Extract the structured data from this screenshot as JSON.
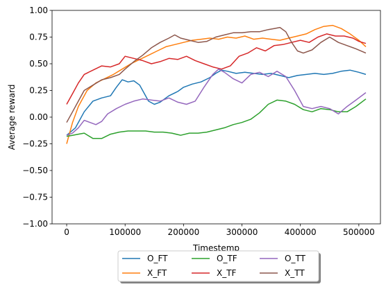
{
  "chart_data": {
    "type": "line",
    "title": "",
    "xlabel": "Timestemp",
    "ylabel": "Average reward",
    "xlim": [
      -25000,
      537000
    ],
    "ylim": [
      -1.0,
      1.0
    ],
    "xticks": [
      0,
      100000,
      200000,
      300000,
      400000,
      500000
    ],
    "xtick_labels": [
      "0",
      "100000",
      "200000",
      "300000",
      "400000",
      "500000"
    ],
    "yticks": [
      -1.0,
      -0.75,
      -0.5,
      -0.25,
      0.0,
      0.25,
      0.5,
      0.75,
      1.0
    ],
    "ytick_labels": [
      "−1.00",
      "−0.75",
      "−0.50",
      "−0.25",
      "0.00",
      "0.25",
      "0.50",
      "0.75",
      "1.00"
    ],
    "grid": false,
    "legend_position": "bottom-center",
    "legend_columns": 3,
    "series": [
      {
        "name": "O_FT",
        "color": "#1f77b4",
        "x": [
          0,
          15000,
          30000,
          45000,
          60000,
          75000,
          85000,
          95000,
          105000,
          115000,
          125000,
          140000,
          150000,
          160000,
          175000,
          190000,
          200000,
          215000,
          230000,
          245000,
          255000,
          265000,
          275000,
          290000,
          305000,
          320000,
          335000,
          350000,
          365000,
          380000,
          395000,
          410000,
          425000,
          440000,
          455000,
          470000,
          485000,
          500000,
          512000
        ],
        "y": [
          -0.17,
          -0.1,
          0.05,
          0.15,
          0.18,
          0.2,
          0.28,
          0.35,
          0.33,
          0.34,
          0.3,
          0.15,
          0.12,
          0.14,
          0.2,
          0.24,
          0.28,
          0.31,
          0.33,
          0.37,
          0.41,
          0.44,
          0.43,
          0.41,
          0.42,
          0.41,
          0.4,
          0.41,
          0.39,
          0.37,
          0.39,
          0.4,
          0.41,
          0.4,
          0.41,
          0.43,
          0.44,
          0.42,
          0.4
        ]
      },
      {
        "name": "X_FT",
        "color": "#ff7f0e",
        "x": [
          0,
          10000,
          20000,
          35000,
          50000,
          65000,
          80000,
          95000,
          110000,
          125000,
          140000,
          155000,
          170000,
          185000,
          200000,
          215000,
          230000,
          245000,
          260000,
          275000,
          290000,
          305000,
          320000,
          335000,
          350000,
          365000,
          380000,
          395000,
          410000,
          425000,
          440000,
          455000,
          470000,
          485000,
          500000,
          512000
        ],
        "y": [
          -0.25,
          -0.05,
          0.1,
          0.25,
          0.32,
          0.36,
          0.4,
          0.45,
          0.5,
          0.54,
          0.58,
          0.62,
          0.66,
          0.68,
          0.7,
          0.72,
          0.73,
          0.74,
          0.73,
          0.75,
          0.74,
          0.76,
          0.73,
          0.74,
          0.73,
          0.72,
          0.74,
          0.76,
          0.78,
          0.82,
          0.85,
          0.86,
          0.83,
          0.78,
          0.72,
          0.66
        ]
      },
      {
        "name": "O_TF",
        "color": "#2ca02c",
        "x": [
          0,
          10000,
          20000,
          30000,
          45000,
          60000,
          75000,
          90000,
          105000,
          120000,
          135000,
          150000,
          165000,
          180000,
          195000,
          210000,
          225000,
          240000,
          255000,
          270000,
          285000,
          300000,
          315000,
          330000,
          345000,
          360000,
          375000,
          390000,
          405000,
          420000,
          435000,
          450000,
          465000,
          480000,
          495000,
          512000
        ],
        "y": [
          -0.18,
          -0.17,
          -0.16,
          -0.15,
          -0.2,
          -0.2,
          -0.16,
          -0.14,
          -0.13,
          -0.13,
          -0.13,
          -0.14,
          -0.14,
          -0.15,
          -0.17,
          -0.15,
          -0.15,
          -0.14,
          -0.12,
          -0.1,
          -0.07,
          -0.05,
          -0.02,
          0.04,
          0.12,
          0.16,
          0.15,
          0.12,
          0.07,
          0.05,
          0.08,
          0.07,
          0.05,
          0.05,
          0.1,
          0.17
        ]
      },
      {
        "name": "X_TF",
        "color": "#d62728",
        "x": [
          0,
          10000,
          20000,
          30000,
          45000,
          60000,
          75000,
          90000,
          100000,
          115000,
          130000,
          145000,
          160000,
          175000,
          190000,
          205000,
          220000,
          235000,
          250000,
          265000,
          280000,
          295000,
          310000,
          325000,
          340000,
          355000,
          370000,
          385000,
          400000,
          415000,
          430000,
          445000,
          460000,
          475000,
          490000,
          500000,
          512000
        ],
        "y": [
          0.12,
          0.22,
          0.32,
          0.4,
          0.44,
          0.48,
          0.47,
          0.5,
          0.57,
          0.55,
          0.53,
          0.5,
          0.52,
          0.55,
          0.54,
          0.57,
          0.53,
          0.5,
          0.47,
          0.45,
          0.48,
          0.57,
          0.6,
          0.65,
          0.62,
          0.67,
          0.68,
          0.7,
          0.72,
          0.7,
          0.75,
          0.78,
          0.76,
          0.76,
          0.74,
          0.71,
          0.69
        ]
      },
      {
        "name": "O_TT",
        "color": "#9467bd",
        "x": [
          0,
          10000,
          20000,
          30000,
          40000,
          50000,
          60000,
          70000,
          85000,
          100000,
          115000,
          130000,
          145000,
          160000,
          175000,
          190000,
          205000,
          220000,
          235000,
          250000,
          260000,
          270000,
          285000,
          300000,
          315000,
          330000,
          345000,
          360000,
          375000,
          390000,
          405000,
          420000,
          435000,
          450000,
          465000,
          480000,
          495000,
          512000
        ],
        "y": [
          -0.17,
          -0.15,
          -0.1,
          -0.03,
          -0.05,
          -0.07,
          -0.04,
          0.03,
          0.08,
          0.12,
          0.15,
          0.17,
          0.16,
          0.15,
          0.18,
          0.14,
          0.12,
          0.15,
          0.28,
          0.4,
          0.45,
          0.42,
          0.36,
          0.32,
          0.4,
          0.42,
          0.38,
          0.43,
          0.38,
          0.25,
          0.1,
          0.08,
          0.1,
          0.08,
          0.03,
          0.1,
          0.16,
          0.23
        ]
      },
      {
        "name": "X_TT",
        "color": "#8c564b",
        "x": [
          0,
          10000,
          20000,
          30000,
          45000,
          60000,
          75000,
          90000,
          100000,
          115000,
          130000,
          145000,
          160000,
          175000,
          185000,
          195000,
          210000,
          225000,
          240000,
          255000,
          270000,
          285000,
          300000,
          315000,
          330000,
          345000,
          355000,
          365000,
          375000,
          385000,
          395000,
          405000,
          420000,
          435000,
          450000,
          465000,
          480000,
          495000,
          512000
        ],
        "y": [
          -0.05,
          0.05,
          0.15,
          0.25,
          0.3,
          0.35,
          0.37,
          0.4,
          0.45,
          0.52,
          0.58,
          0.65,
          0.7,
          0.74,
          0.77,
          0.74,
          0.72,
          0.7,
          0.71,
          0.75,
          0.77,
          0.79,
          0.79,
          0.8,
          0.8,
          0.82,
          0.83,
          0.84,
          0.8,
          0.7,
          0.62,
          0.6,
          0.63,
          0.7,
          0.75,
          0.7,
          0.67,
          0.64,
          0.6
        ]
      }
    ]
  }
}
